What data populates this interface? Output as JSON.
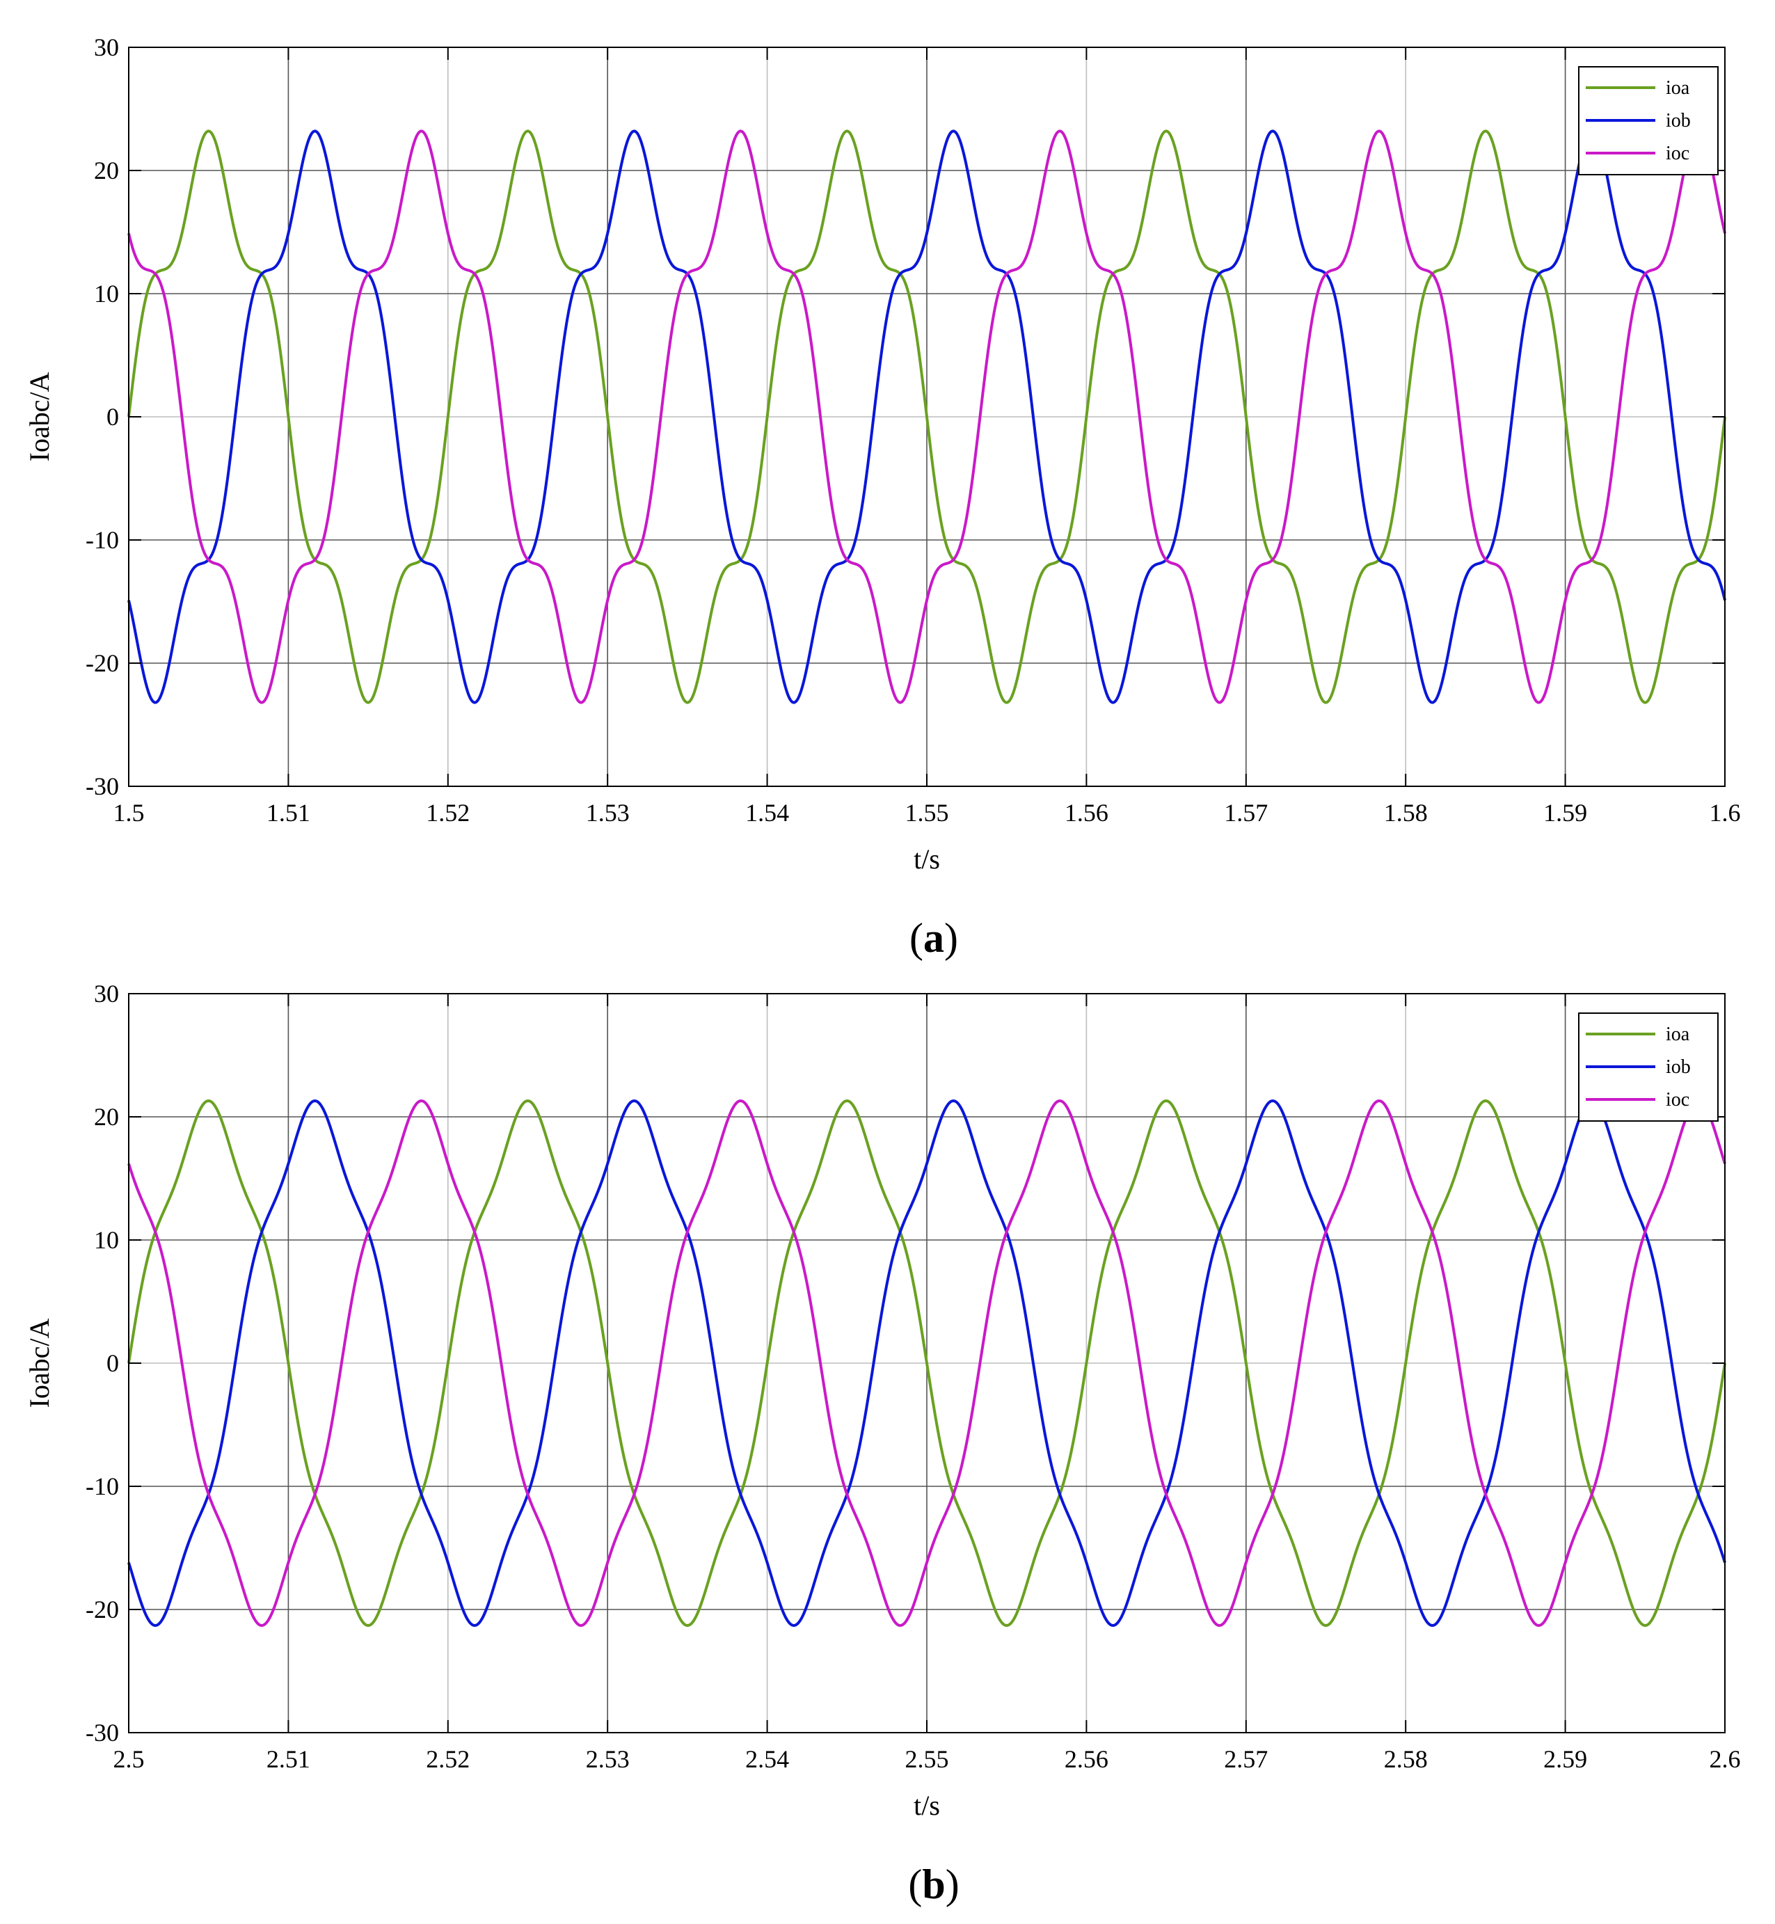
{
  "chart_data": [
    {
      "type": "line",
      "panel_label": "a",
      "xlabel": "t/s",
      "ylabel": "Ioabc/A",
      "xlim": [
        1.5,
        1.6
      ],
      "ylim": [
        -30,
        30
      ],
      "x_ticks": [
        1.5,
        1.51,
        1.52,
        1.53,
        1.54,
        1.55,
        1.56,
        1.57,
        1.58,
        1.59,
        1.6
      ],
      "x_tick_labels": [
        "1.5",
        "1.51",
        "1.52",
        "1.53",
        "1.54",
        "1.55",
        "1.56",
        "1.57",
        "1.58",
        "1.59",
        "1.6"
      ],
      "y_ticks": [
        -30,
        -20,
        -10,
        0,
        10,
        20,
        30
      ],
      "y_tick_labels": [
        "-30",
        "-20",
        "-10",
        "0",
        "10",
        "20",
        "30"
      ],
      "grid": true,
      "legend_position": "top-right",
      "waveform": {
        "frequency_hz": 50,
        "amplitude": 20.2,
        "fifth_harmonic_amplitude": 3.0
      },
      "series": [
        {
          "name": "ioa",
          "color": "#6aa121",
          "phase_deg": 0
        },
        {
          "name": "iob",
          "color": "#0a17d8",
          "phase_deg": -120
        },
        {
          "name": "ioc",
          "color": "#c91ac8",
          "phase_deg": 120
        }
      ]
    },
    {
      "type": "line",
      "panel_label": "b",
      "xlabel": "t/s",
      "ylabel": "Ioabc/A",
      "xlim": [
        2.5,
        2.6
      ],
      "ylim": [
        -30,
        30
      ],
      "x_ticks": [
        2.5,
        2.51,
        2.52,
        2.53,
        2.54,
        2.55,
        2.56,
        2.57,
        2.58,
        2.59,
        2.6
      ],
      "x_tick_labels": [
        "2.5",
        "2.51",
        "2.52",
        "2.53",
        "2.54",
        "2.55",
        "2.56",
        "2.57",
        "2.58",
        "2.59",
        "2.6"
      ],
      "y_ticks": [
        -30,
        -20,
        -10,
        0,
        10,
        20,
        30
      ],
      "y_tick_labels": [
        "-30",
        "-20",
        "-10",
        "0",
        "10",
        "20",
        "30"
      ],
      "grid": true,
      "legend_position": "top-right",
      "waveform": {
        "frequency_hz": 50,
        "amplitude": 20.0,
        "fifth_harmonic_amplitude": 1.3
      },
      "series": [
        {
          "name": "ioa",
          "color": "#6aa121",
          "phase_deg": 0
        },
        {
          "name": "iob",
          "color": "#0a17d8",
          "phase_deg": -120
        },
        {
          "name": "ioc",
          "color": "#c91ac8",
          "phase_deg": 120
        }
      ]
    }
  ]
}
